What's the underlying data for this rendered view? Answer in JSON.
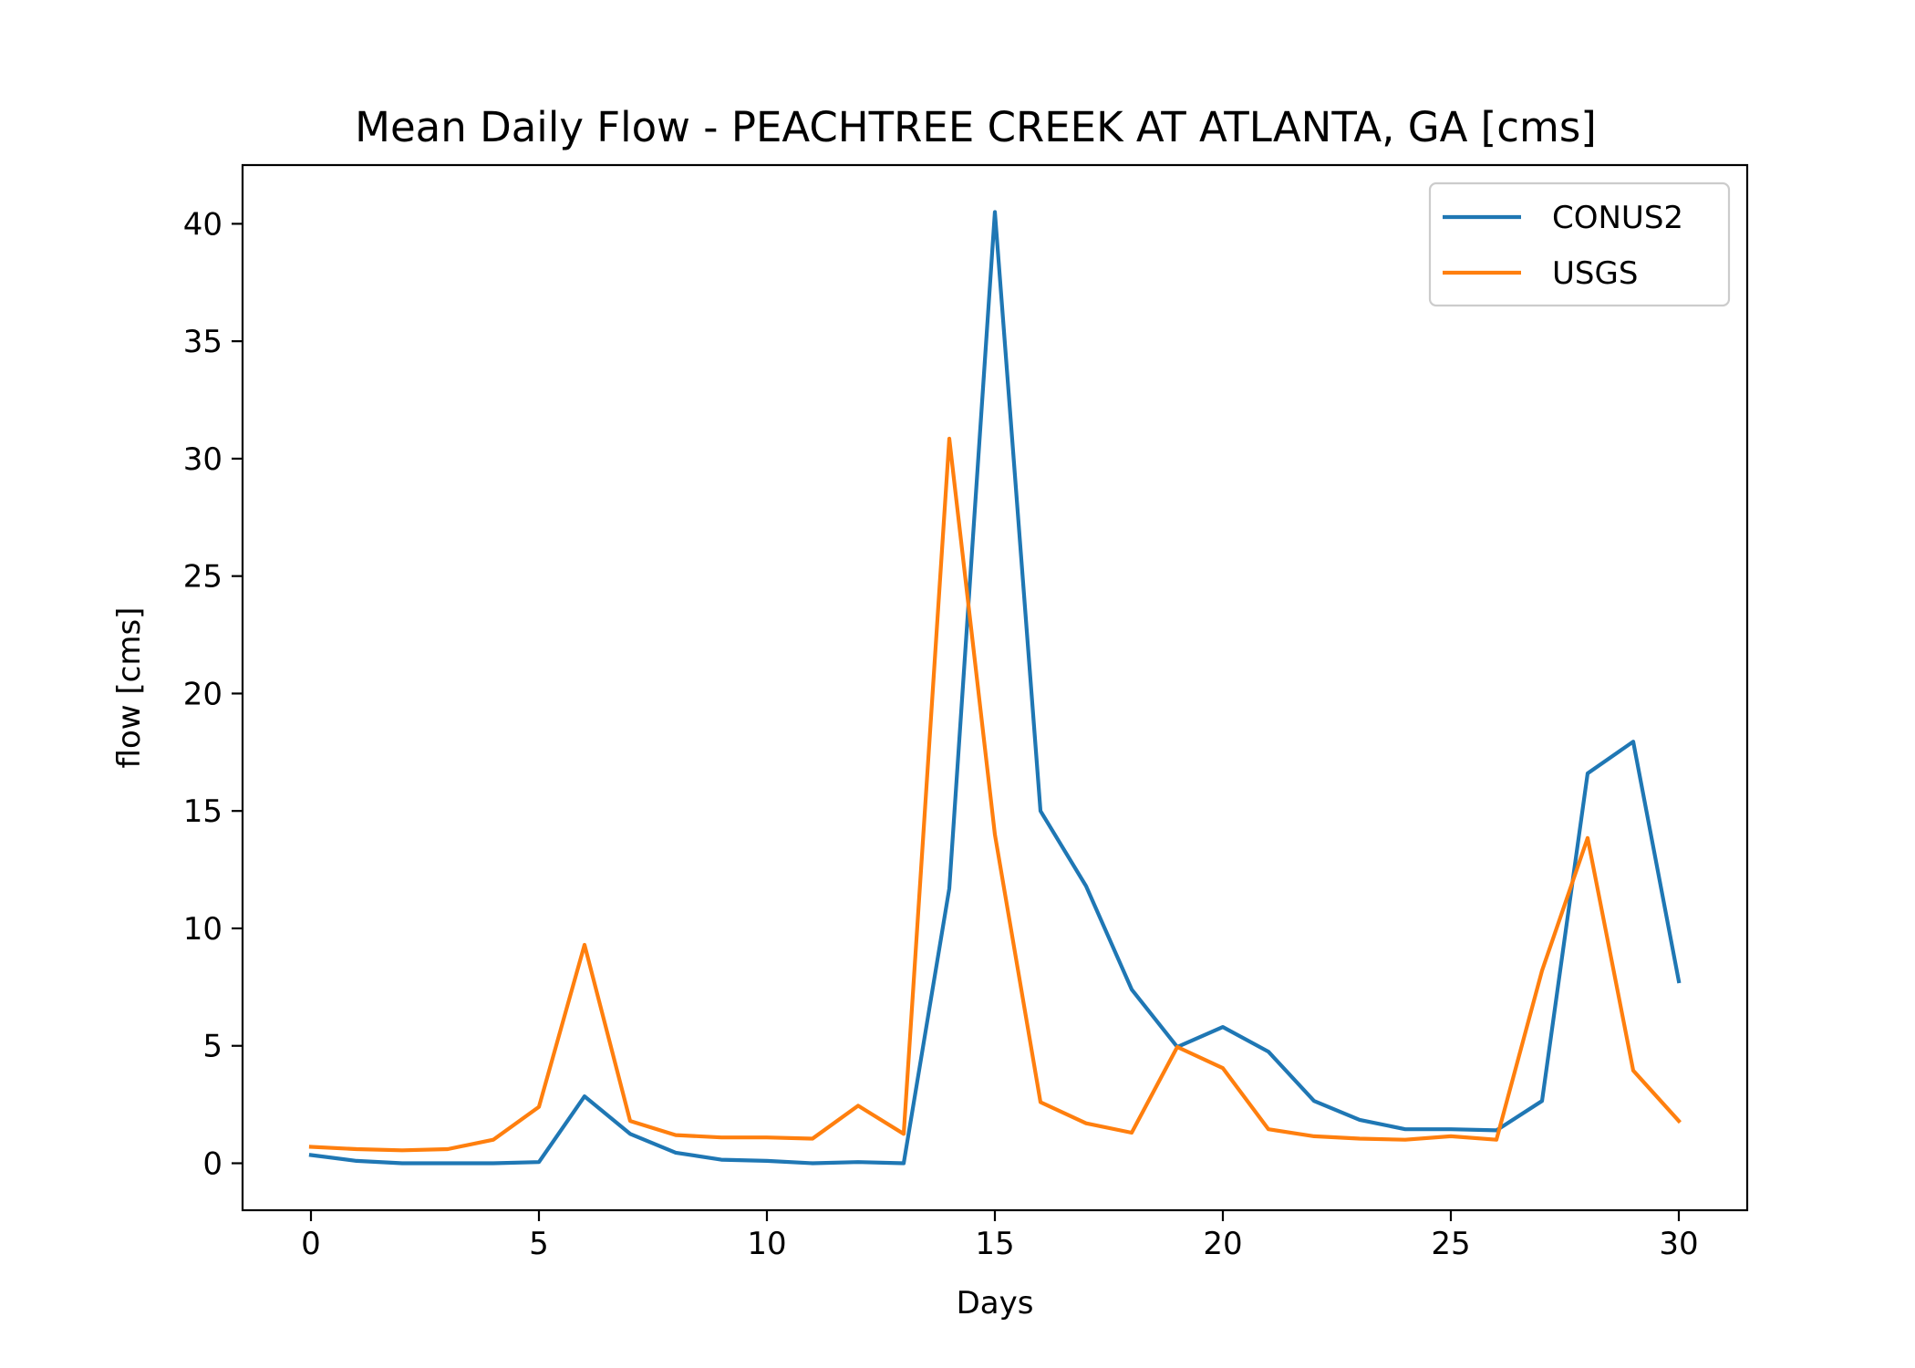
{
  "chart_data": {
    "type": "line",
    "title": "Mean Daily Flow - PEACHTREE CREEK AT ATLANTA, GA [cms]",
    "xlabel": "Days",
    "ylabel": "flow [cms]",
    "xlim": [
      -1.5,
      31.5
    ],
    "ylim": [
      -2.0,
      42.5
    ],
    "xticks": [
      0,
      5,
      10,
      15,
      20,
      25,
      30
    ],
    "yticks": [
      0,
      5,
      10,
      15,
      20,
      25,
      30,
      35,
      40
    ],
    "grid": false,
    "legend_position": "top-right",
    "x": [
      0,
      1,
      2,
      3,
      4,
      5,
      6,
      7,
      8,
      9,
      10,
      11,
      12,
      13,
      14,
      15,
      16,
      17,
      18,
      19,
      20,
      21,
      22,
      23,
      24,
      25,
      26,
      27,
      28,
      29,
      30
    ],
    "series": [
      {
        "name": "CONUS2",
        "color": "#1f77b4",
        "values": [
          0.35,
          0.1,
          0.0,
          0.0,
          0.0,
          0.05,
          2.85,
          1.25,
          0.45,
          0.15,
          0.1,
          0.0,
          0.05,
          0.0,
          11.7,
          40.5,
          15.0,
          11.8,
          7.4,
          4.95,
          5.8,
          4.75,
          2.65,
          1.85,
          1.45,
          1.45,
          1.4,
          2.65,
          16.6,
          17.95,
          7.75
        ]
      },
      {
        "name": "USGS",
        "color": "#ff7f0e",
        "values": [
          0.7,
          0.6,
          0.55,
          0.6,
          1.0,
          2.4,
          9.3,
          1.8,
          1.2,
          1.1,
          1.1,
          1.05,
          2.45,
          1.25,
          30.85,
          14.0,
          2.6,
          1.7,
          1.3,
          4.95,
          4.05,
          1.45,
          1.15,
          1.05,
          1.0,
          1.15,
          1.0,
          8.2,
          13.85,
          3.95,
          1.8
        ]
      }
    ]
  }
}
